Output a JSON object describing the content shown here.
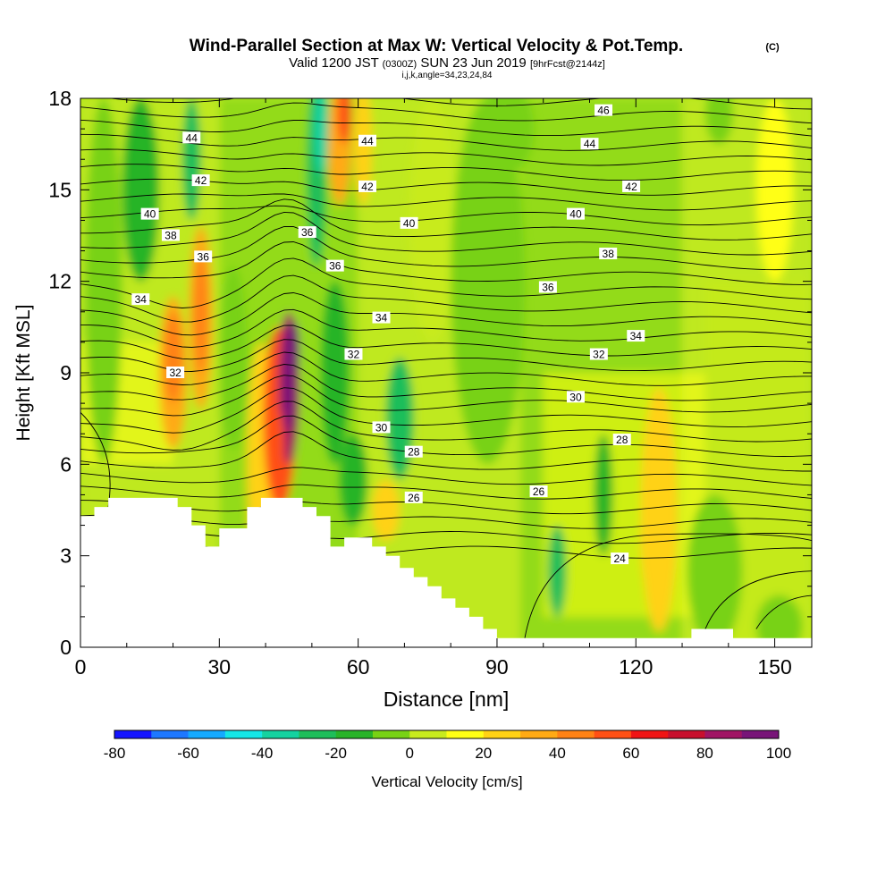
{
  "chart_data": {
    "type": "heatmap",
    "title": "Wind-Parallel Section at Max W: Vertical Velocity & Pot.Temp.",
    "title_mark": "(C)",
    "subtitle": {
      "main": "Valid 1200 JST",
      "z": "(0300Z)",
      "date": "SUN 23 Jun 2019",
      "fcst": "[9hrFcst@2144z]"
    },
    "subtitle2": "i,j,k,angle=34,23,24,84",
    "xlabel": "Distance [nm]",
    "ylabel": "Height [Kft MSL]",
    "xlim": [
      0,
      158
    ],
    "ylim": [
      0,
      18
    ],
    "x_ticks": [
      0,
      30,
      60,
      90,
      120,
      150
    ],
    "y_ticks": [
      0,
      3,
      6,
      9,
      12,
      15,
      18
    ],
    "grid": false,
    "colorbar": {
      "label": "Vertical Velocity [cm/s]",
      "levels": [
        -80,
        -70,
        -60,
        -50,
        -40,
        -30,
        -20,
        -10,
        0,
        10,
        20,
        30,
        40,
        50,
        60,
        70,
        80,
        90,
        100
      ],
      "tick_labels": [
        "-80",
        "-60",
        "-40",
        "-20",
        "0",
        "20",
        "40",
        "60",
        "80",
        "100"
      ],
      "colors": [
        "#1414ff",
        "#1e78ff",
        "#14aaff",
        "#14e6e6",
        "#14d2a0",
        "#1ebe5a",
        "#28b428",
        "#78d214",
        "#c8eb1e",
        "#ffff14",
        "#ffd214",
        "#ffaa14",
        "#ff8214",
        "#ff5014",
        "#f01414",
        "#c80f2d",
        "#a01464",
        "#781478"
      ]
    },
    "w_features": [
      {
        "x": 45,
        "z": 8.5,
        "w": 100
      },
      {
        "x": 52,
        "z": 16.5,
        "w": -40
      },
      {
        "x": 53,
        "z": 17,
        "w": 50
      },
      {
        "x": 20,
        "z": 9,
        "w": 35
      },
      {
        "x": 27,
        "z": 11,
        "w": 30
      },
      {
        "x": 69,
        "z": 7.5,
        "w": -20
      },
      {
        "x": 125,
        "z": 4,
        "w": 20
      },
      {
        "x": 103,
        "z": 2.5,
        "w": -20
      }
    ],
    "theta_contours": [
      {
        "label": "24",
        "label_x": 116.5,
        "label_z": 2.9
      },
      {
        "label": "26",
        "label_x": 72,
        "label_z": 4.9
      },
      {
        "label": "26",
        "label_x": 99,
        "label_z": 5.1
      },
      {
        "label": "28",
        "label_x": 72,
        "label_z": 6.4
      },
      {
        "label": "28",
        "label_x": 117,
        "label_z": 6.8
      },
      {
        "label": "30",
        "label_x": 65,
        "label_z": 7.2
      },
      {
        "label": "30",
        "label_x": 107,
        "label_z": 8.2
      },
      {
        "label": "32",
        "label_x": 20.5,
        "label_z": 9.0
      },
      {
        "label": "32",
        "label_x": 59,
        "label_z": 9.6
      },
      {
        "label": "32",
        "label_x": 112,
        "label_z": 9.6
      },
      {
        "label": "34",
        "label_x": 13,
        "label_z": 11.4
      },
      {
        "label": "34",
        "label_x": 65,
        "label_z": 10.8
      },
      {
        "label": "34",
        "label_x": 120,
        "label_z": 10.2
      },
      {
        "label": "36",
        "label_x": 26.5,
        "label_z": 12.8
      },
      {
        "label": "36",
        "label_x": 49,
        "label_z": 13.6
      },
      {
        "label": "36",
        "label_x": 55,
        "label_z": 12.5
      },
      {
        "label": "36",
        "label_x": 101,
        "label_z": 11.8
      },
      {
        "label": "38",
        "label_x": 19.5,
        "label_z": 13.5
      },
      {
        "label": "38",
        "label_x": 114,
        "label_z": 12.9
      },
      {
        "label": "40",
        "label_x": 15,
        "label_z": 14.2
      },
      {
        "label": "40",
        "label_x": 71,
        "label_z": 13.9
      },
      {
        "label": "40",
        "label_x": 107,
        "label_z": 14.2
      },
      {
        "label": "42",
        "label_x": 26,
        "label_z": 15.3
      },
      {
        "label": "42",
        "label_x": 62,
        "label_z": 15.1
      },
      {
        "label": "42",
        "label_x": 119,
        "label_z": 15.1
      },
      {
        "label": "44",
        "label_x": 24,
        "label_z": 16.7
      },
      {
        "label": "44",
        "label_x": 62,
        "label_z": 16.6
      },
      {
        "label": "44",
        "label_x": 110,
        "label_z": 16.5
      },
      {
        "label": "46",
        "label_x": 113,
        "label_z": 17.6
      }
    ],
    "terrain": {
      "x": [
        0,
        3,
        3,
        6,
        6,
        9,
        9,
        21,
        21,
        24,
        24,
        27,
        27,
        30,
        30,
        33,
        33,
        36,
        36,
        39,
        39,
        42,
        42,
        48,
        48,
        51,
        51,
        54,
        54,
        57,
        57,
        60,
        60,
        63,
        63,
        66,
        66,
        69,
        69,
        72,
        72,
        75,
        75,
        78,
        78,
        81,
        81,
        84,
        84,
        87,
        87,
        90,
        90,
        132,
        132,
        135,
        135,
        141,
        141,
        158
      ],
      "z": [
        4.3,
        4.3,
        4.6,
        4.6,
        4.9,
        4.9,
        4.9,
        4.9,
        4.6,
        4.6,
        4.0,
        4.0,
        3.3,
        3.3,
        3.9,
        3.9,
        3.9,
        3.9,
        4.6,
        4.6,
        4.9,
        4.9,
        4.9,
        4.9,
        4.6,
        4.6,
        4.3,
        4.3,
        3.3,
        3.3,
        3.6,
        3.6,
        3.6,
        3.6,
        3.3,
        3.3,
        3.0,
        3.0,
        2.6,
        2.6,
        2.3,
        2.3,
        2.0,
        2.0,
        1.6,
        1.6,
        1.3,
        1.3,
        1.0,
        1.0,
        0.6,
        0.6,
        0.3,
        0.3,
        0.6,
        0.6,
        0.6,
        0.6,
        0.3,
        0.3
      ]
    }
  }
}
